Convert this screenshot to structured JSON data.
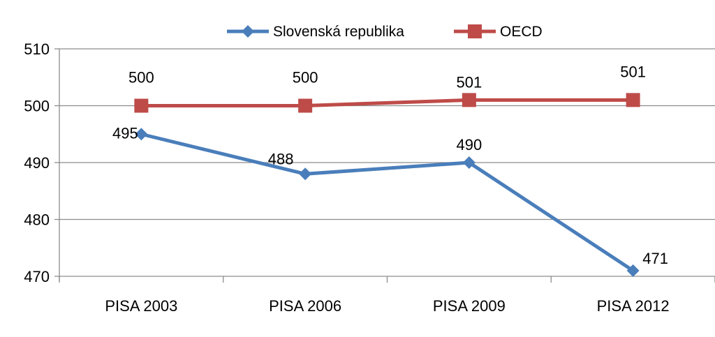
{
  "chart_data": {
    "type": "line",
    "categories": [
      "PISA 2003",
      "PISA 2006",
      "PISA 2009",
      "PISA 2012"
    ],
    "series": [
      {
        "name": "Slovenská republika",
        "values": [
          495,
          488,
          490,
          471
        ],
        "labels": [
          "495",
          "488",
          "490",
          "471"
        ],
        "color": "#4a7ebb",
        "marker": "diamond"
      },
      {
        "name": "OECD",
        "values": [
          500,
          500,
          501,
          501
        ],
        "labels": [
          "500",
          "500",
          "501",
          "501"
        ],
        "color": "#be4b48",
        "marker": "square"
      }
    ],
    "ylim": [
      470,
      510
    ],
    "yticks": [
      "470",
      "480",
      "490",
      "500",
      "510"
    ],
    "grid": true,
    "legend_position": "top"
  }
}
